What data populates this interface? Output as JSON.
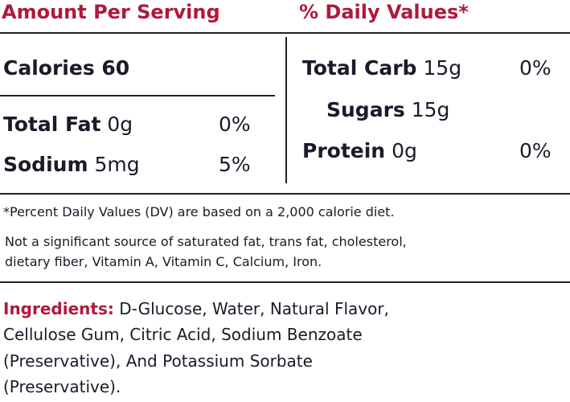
{
  "header": {
    "amount_per_serving": "Amount Per Serving",
    "daily_values": "% Daily Values*"
  },
  "calories": "Calories 60",
  "left_rows": [
    {
      "name": "Total Fat",
      "amount": "0g",
      "dv": "0%"
    },
    {
      "name": "Sodium",
      "amount": "5mg",
      "dv": "5%"
    }
  ],
  "right_rows": [
    {
      "name": "Total Carb",
      "amount": "15g",
      "dv": "0%"
    },
    {
      "name": "Sugars",
      "amount": "15g"
    },
    {
      "name": "Protein",
      "amount": "0g",
      "dv": "0%"
    }
  ],
  "footnote": "*Percent Daily Values (DV) are based on a 2,000 calorie diet.",
  "notice_lines": [
    "Not a significant source of saturated fat, trans fat, cholesterol,",
    "dietary fiber, Vitamin A, Vitamin C, Calcium, Iron."
  ],
  "ingredients": {
    "label": "Ingredients:",
    "lines": [
      " D-Glucose, Water, Natural Flavor,",
      "Cellulose Gum, Citric Acid, Sodium Benzoate",
      "(Preservative), And Potassium Sorbate",
      "(Preservative)."
    ]
  }
}
